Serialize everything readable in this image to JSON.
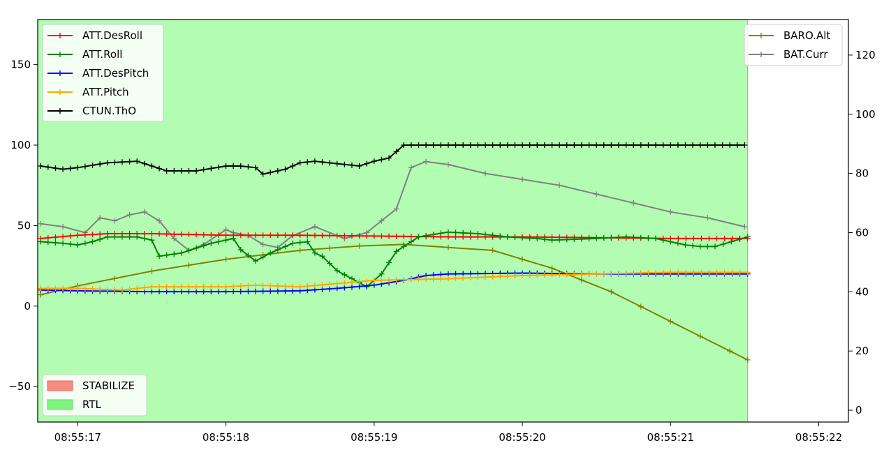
{
  "chart_data": {
    "type": "line",
    "x_ticks": [
      "08:55:17",
      "08:55:18",
      "08:55:19",
      "08:55:20",
      "08:55:21",
      "08:55:22"
    ],
    "xlim": [
      16.73,
      22.2
    ],
    "ylim_left": [
      -72,
      178
    ],
    "ylim_right": [
      -4,
      132
    ],
    "y_ticks_left": [
      -50,
      0,
      50,
      100,
      150
    ],
    "y_ticks_right": [
      0,
      20,
      40,
      60,
      80,
      100,
      120
    ],
    "y_tick_labels_left": [
      "−50",
      "0",
      "50",
      "100",
      "150"
    ],
    "y_tick_labels_right": [
      "0",
      "20",
      "40",
      "60",
      "80",
      "100",
      "120"
    ],
    "grid": false,
    "legend_left_placement": "upper-left",
    "legend_modes_placement": "lower-left",
    "legend_right_placement": "upper-right",
    "mode_spans": [
      {
        "name": "STABILIZE",
        "color": "#f88a84",
        "start": null,
        "end": null
      },
      {
        "name": "RTL",
        "color": "#7ff47f",
        "start": 16.73,
        "end": 21.52
      }
    ],
    "series_left": [
      {
        "name": "ATT.DesRoll",
        "color": "#ff0000",
        "x": [
          16.75,
          17.0,
          17.2,
          17.5,
          18.0,
          18.5,
          19.0,
          19.5,
          20.0,
          20.5,
          21.0,
          21.52
        ],
        "y": [
          42,
          44,
          45,
          45,
          44,
          44,
          43.5,
          43,
          43,
          42.5,
          42,
          42
        ]
      },
      {
        "name": "ATT.Roll",
        "color": "#008000",
        "x": [
          16.75,
          16.9,
          17.0,
          17.1,
          17.2,
          17.4,
          17.5,
          17.55,
          17.7,
          17.9,
          18.05,
          18.1,
          18.2,
          18.3,
          18.45,
          18.55,
          18.6,
          18.65,
          18.75,
          18.85,
          18.95,
          19.05,
          19.15,
          19.3,
          19.5,
          19.7,
          19.9,
          20.1,
          20.2,
          20.5,
          20.7,
          20.9,
          21.0,
          21.1,
          21.2,
          21.3,
          21.52
        ],
        "y": [
          40,
          39,
          38,
          40,
          43,
          43,
          41,
          31,
          33,
          39,
          42,
          35,
          28,
          33,
          39,
          40,
          33,
          31,
          22,
          17,
          12,
          20,
          34,
          43,
          46,
          45,
          43,
          42,
          41,
          42,
          43,
          42,
          40,
          38,
          37,
          37,
          43
        ]
      },
      {
        "name": "ATT.DesPitch",
        "color": "#0000ff",
        "x": [
          16.75,
          17.0,
          17.5,
          18.0,
          18.5,
          18.75,
          19.0,
          19.2,
          19.35,
          19.5,
          20.0,
          20.5,
          21.0,
          21.52
        ],
        "y": [
          10,
          9.5,
          9,
          9,
          9.5,
          11,
          13,
          16,
          19,
          20,
          20.5,
          20,
          20,
          20
        ]
      },
      {
        "name": "ATT.Pitch",
        "color": "#ffa500",
        "x": [
          16.75,
          17.0,
          17.3,
          17.5,
          18.0,
          18.2,
          18.5,
          18.75,
          19.0,
          19.5,
          20.0,
          20.5,
          21.0,
          21.52
        ],
        "y": [
          11,
          11,
          10,
          12,
          12,
          13,
          12,
          14,
          16,
          17,
          19,
          20,
          21,
          21
        ]
      },
      {
        "name": "CTUN.ThO",
        "color": "#000000",
        "x": [
          16.75,
          16.9,
          17.0,
          17.2,
          17.4,
          17.5,
          17.6,
          17.8,
          18.0,
          18.1,
          18.2,
          18.25,
          18.4,
          18.5,
          18.6,
          18.8,
          18.9,
          19.0,
          19.1,
          19.2,
          19.5,
          20.0,
          20.5,
          21.0,
          21.5
        ],
        "y": [
          87,
          85,
          86,
          89,
          90,
          87,
          84,
          84,
          87,
          87,
          86,
          82,
          85,
          89,
          90,
          88,
          87,
          90,
          92,
          100,
          100,
          100,
          100,
          100,
          100
        ]
      }
    ],
    "series_right": [
      {
        "name": "BARO.Alt",
        "color": "#808000",
        "x": [
          16.75,
          17.0,
          17.5,
          18.0,
          18.5,
          18.9,
          19.2,
          19.5,
          19.8,
          20.0,
          20.2,
          20.4,
          20.6,
          20.8,
          21.0,
          21.2,
          21.4,
          21.52
        ],
        "y": [
          39,
          42,
          47,
          51,
          54,
          55.5,
          56,
          55,
          54,
          51,
          48,
          44,
          40,
          35,
          30,
          25,
          20,
          17
        ]
      },
      {
        "name": "BAT.Curr",
        "color": "#808080",
        "x": [
          16.75,
          16.9,
          17.05,
          17.15,
          17.25,
          17.35,
          17.45,
          17.55,
          17.65,
          17.75,
          17.85,
          18.0,
          18.05,
          18.15,
          18.25,
          18.35,
          18.45,
          18.6,
          18.8,
          18.95,
          19.05,
          19.15,
          19.25,
          19.35,
          19.5,
          19.75,
          20.0,
          20.25,
          20.5,
          20.75,
          21.0,
          21.25,
          21.5
        ],
        "y": [
          63,
          62,
          60,
          65,
          64,
          66,
          67,
          64,
          58,
          54,
          56,
          61,
          60,
          59,
          56,
          55,
          59,
          62,
          58,
          60,
          64,
          68,
          82,
          84,
          83,
          80,
          78,
          76,
          73,
          70,
          67,
          65,
          62
        ]
      }
    ]
  }
}
